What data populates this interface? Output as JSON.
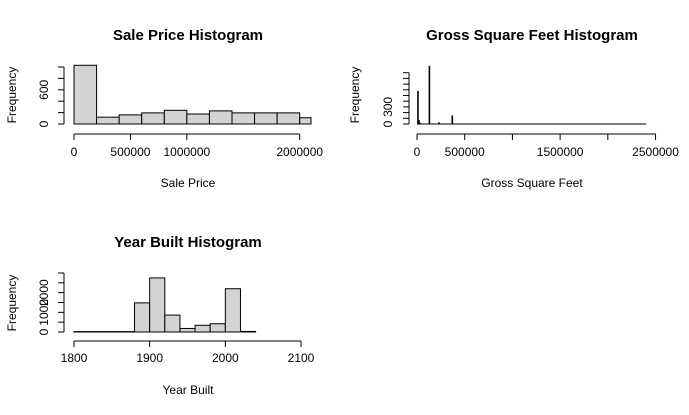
{
  "chart_data": [
    {
      "type": "bar",
      "title": "Sale Price Histogram",
      "xlabel": "Sale Price",
      "ylabel": "Frequency",
      "xlim": [
        0,
        2100000
      ],
      "ylim": [
        0,
        1000
      ],
      "x_ticks": [
        0,
        500000,
        1000000,
        2000000
      ],
      "x_tick_labels": [
        "0",
        "500000",
        "1000000",
        "2000000"
      ],
      "y_ticks": [
        0,
        600
      ],
      "y_tick_labels": [
        "0",
        "600"
      ],
      "y_minor_ticks": [
        200,
        400,
        800,
        1000
      ],
      "bins": [
        {
          "x0": 0,
          "x1": 200000,
          "count": 1030
        },
        {
          "x0": 200000,
          "x1": 400000,
          "count": 120
        },
        {
          "x0": 400000,
          "x1": 600000,
          "count": 160
        },
        {
          "x0": 600000,
          "x1": 800000,
          "count": 195
        },
        {
          "x0": 800000,
          "x1": 1000000,
          "count": 240
        },
        {
          "x0": 1000000,
          "x1": 1200000,
          "count": 175
        },
        {
          "x0": 1200000,
          "x1": 1400000,
          "count": 230
        },
        {
          "x0": 1400000,
          "x1": 1600000,
          "count": 195
        },
        {
          "x0": 1600000,
          "x1": 1800000,
          "count": 195
        },
        {
          "x0": 1800000,
          "x1": 2000000,
          "count": 195
        },
        {
          "x0": 2000000,
          "x1": 2100000,
          "count": 110
        }
      ]
    },
    {
      "type": "bar",
      "title": "Gross Square Feet Histogram",
      "xlabel": "Gross Square Feet",
      "ylabel": "Frequency",
      "xlim": [
        0,
        2400000
      ],
      "ylim": [
        0,
        1000
      ],
      "x_ticks": [
        0,
        500000,
        1000000,
        1500000,
        2000000,
        2500000
      ],
      "x_tick_labels": [
        "0",
        "500000",
        "",
        "1500000",
        "",
        "2500000"
      ],
      "y_ticks": [
        0,
        300
      ],
      "y_tick_labels": [
        "0",
        "300"
      ],
      "y_minor_ticks": [
        100,
        200,
        400,
        500,
        600,
        700,
        800,
        900
      ],
      "spikes": [
        {
          "x": 10000,
          "count": 580
        },
        {
          "x": 20000,
          "count": 70
        },
        {
          "x": 30000,
          "count": 25
        },
        {
          "x": 130000,
          "count": 1020
        },
        {
          "x": 230000,
          "count": 30
        },
        {
          "x": 370000,
          "count": 150
        }
      ],
      "baseline_range": [
        0,
        2400000
      ]
    },
    {
      "type": "bar",
      "title": "Year Built Histogram",
      "xlabel": "Year Built",
      "ylabel": "Frequency",
      "xlim": [
        1800,
        2100
      ],
      "ylim": [
        0,
        3000
      ],
      "x_ticks": [
        1800,
        1900,
        2000,
        2100
      ],
      "x_tick_labels": [
        "1800",
        "1900",
        "2000",
        "2100"
      ],
      "y_ticks": [
        0,
        1000,
        2000
      ],
      "y_tick_labels": [
        "0",
        "1000",
        "2000"
      ],
      "y_minor_ticks": [
        500,
        1500,
        2500,
        3000
      ],
      "bins": [
        {
          "x0": 1800,
          "x1": 1880,
          "count": 20
        },
        {
          "x0": 1880,
          "x1": 1900,
          "count": 1480
        },
        {
          "x0": 1900,
          "x1": 1920,
          "count": 2750
        },
        {
          "x0": 1920,
          "x1": 1940,
          "count": 860
        },
        {
          "x0": 1940,
          "x1": 1960,
          "count": 180
        },
        {
          "x0": 1960,
          "x1": 1980,
          "count": 340
        },
        {
          "x0": 1980,
          "x1": 2000,
          "count": 420
        },
        {
          "x0": 2000,
          "x1": 2020,
          "count": 2200
        },
        {
          "x0": 2020,
          "x1": 2040,
          "count": 30
        }
      ]
    }
  ]
}
